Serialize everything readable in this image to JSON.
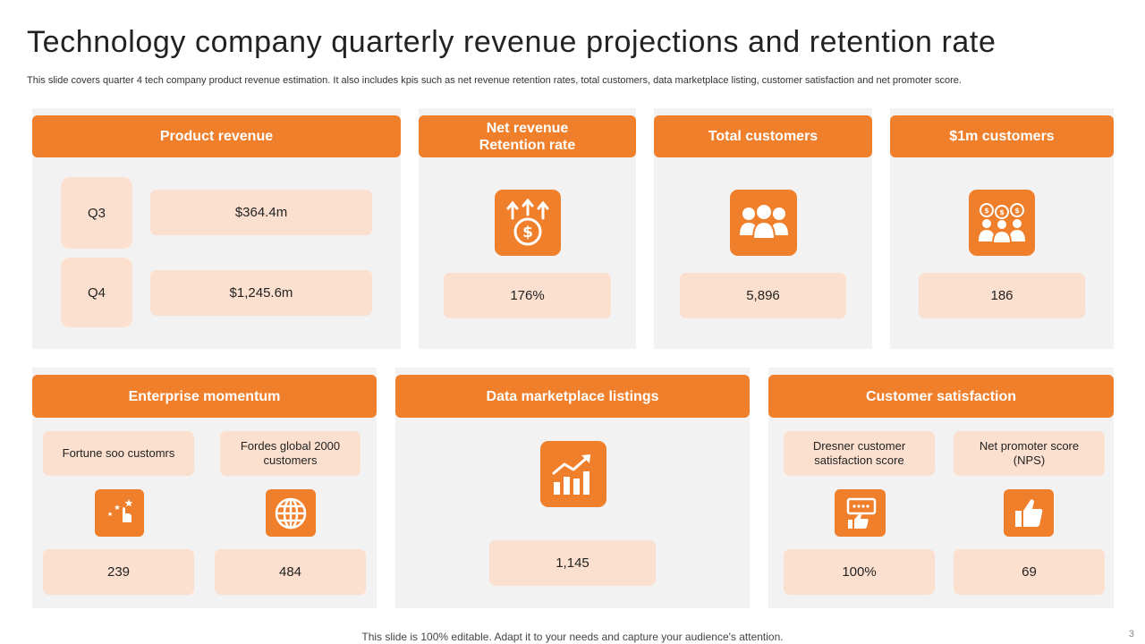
{
  "title": "Technology company quarterly revenue projections and retention rate",
  "subtitle": "This slide covers quarter 4 tech company product revenue estimation. It also includes kpis such as net revenue retention rates, total customers, data marketplace listing, customer satisfaction and net promoter score.",
  "product_revenue": {
    "heading": "Product revenue",
    "rows": [
      {
        "quarter": "Q3",
        "value": "$364.4m"
      },
      {
        "quarter": "Q4",
        "value": "$1,245.6m"
      }
    ]
  },
  "net_revenue": {
    "heading": "Net revenue\nRetention rate",
    "value": "176%",
    "icon": "money-growth-icon"
  },
  "total_customers": {
    "heading": "Total customers",
    "value": "5,896",
    "icon": "customers-group-icon"
  },
  "million_customers": {
    "heading": "$1m customers",
    "value": "186",
    "icon": "dollar-customers-icon"
  },
  "enterprise": {
    "heading": "Enterprise momentum",
    "items": [
      {
        "label": "Fortune soo customrs",
        "value": "239",
        "icon": "stars-hand-icon"
      },
      {
        "label": "Fordes global 2000\ncustomers",
        "value": "484",
        "icon": "globe-icon"
      }
    ]
  },
  "marketplace": {
    "heading": "Data marketplace listings",
    "value": "1,145",
    "icon": "growth-chart-icon"
  },
  "satisfaction": {
    "heading": "Customer satisfaction",
    "items": [
      {
        "label": "Dresner customer\nsatisfaction score",
        "value": "100%",
        "icon": "feedback-icon"
      },
      {
        "label": "Net promoter score\n(NPS)",
        "value": "69",
        "icon": "thumbs-up-icon"
      }
    ]
  },
  "colors": {
    "accent": "#f07f2b",
    "pill": "#fce0cf",
    "panel": "#f2f2f2"
  },
  "footer": "This slide is 100% editable. Adapt it to your needs and capture your audience's attention.",
  "page_number": "3"
}
